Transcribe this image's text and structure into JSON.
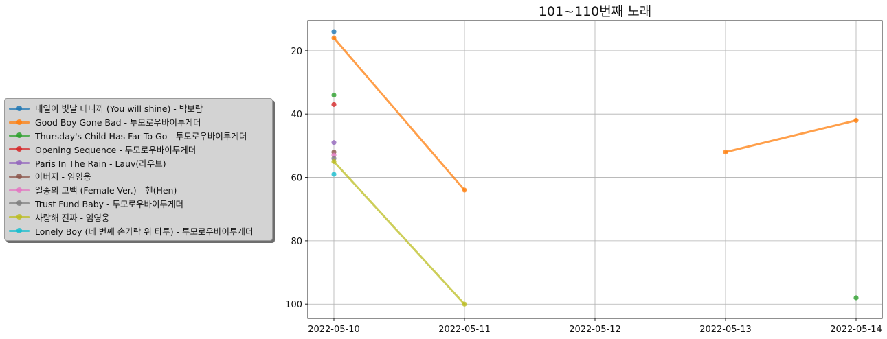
{
  "chart_data": {
    "type": "line",
    "title": "101~110번째 노래",
    "xlabel": "",
    "ylabel": "",
    "x": [
      "2022-05-10",
      "2022-05-11",
      "2022-05-12",
      "2022-05-13",
      "2022-05-14"
    ],
    "x_ticks": [
      "2022-05-10",
      "2022-05-11",
      "2022-05-12",
      "2022-05-13",
      "2022-05-14"
    ],
    "y_ticks": [
      20,
      40,
      60,
      80,
      100
    ],
    "ylim": [
      104.5,
      10.5
    ],
    "y_inverted": true,
    "grid": true,
    "legend_position": "left",
    "series": [
      {
        "name": "내일이 빛날 테니까 (You will shine) - 박보람",
        "color": "#1f77b4",
        "values": [
          14,
          null,
          null,
          null,
          null
        ]
      },
      {
        "name": "Good Boy Gone Bad - 투모로우바이투게더",
        "color": "#ff7f0e",
        "values": [
          16,
          64,
          null,
          52,
          42
        ]
      },
      {
        "name": "Thursday's Child Has Far To Go - 투모로우바이투게더",
        "color": "#2ca02c",
        "values": [
          34,
          null,
          null,
          null,
          98
        ]
      },
      {
        "name": "Opening Sequence - 투모로우바이투게더",
        "color": "#d62728",
        "values": [
          37,
          null,
          null,
          null,
          null
        ]
      },
      {
        "name": "Paris In The Rain - Lauv(라우브)",
        "color": "#9467bd",
        "values": [
          49,
          null,
          null,
          null,
          null
        ]
      },
      {
        "name": "아버지 - 임영웅",
        "color": "#8c564b",
        "values": [
          52,
          null,
          null,
          null,
          null
        ]
      },
      {
        "name": "일종의 고백 (Female Ver.) - 헨(Hen)",
        "color": "#e377c2",
        "values": [
          53,
          null,
          null,
          null,
          null
        ]
      },
      {
        "name": "Trust Fund Baby - 투모로우바이투게더",
        "color": "#7f7f7f",
        "values": [
          54,
          null,
          null,
          null,
          null
        ]
      },
      {
        "name": "사랑해 진짜 - 임영웅",
        "color": "#bcbd22",
        "values": [
          55,
          100,
          null,
          null,
          null
        ]
      },
      {
        "name": "Lonely Boy (네 번째 손가락 위 타투) - 투모로우바이투게더",
        "color": "#17becf",
        "values": [
          59,
          null,
          null,
          null,
          null
        ]
      }
    ]
  }
}
